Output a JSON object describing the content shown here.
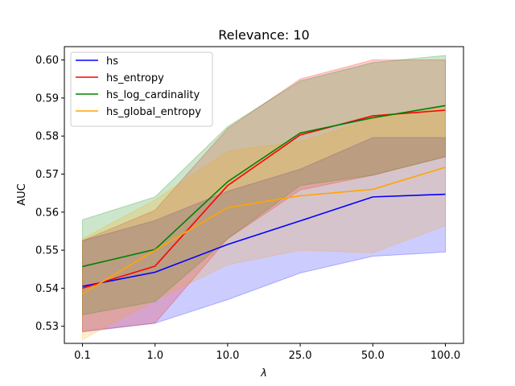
{
  "chart_data": {
    "type": "line",
    "title": "Relevance: 10",
    "xlabel": "λ",
    "ylabel": "AUC",
    "categories": [
      "0.1",
      "1.0",
      "10.0",
      "25.0",
      "50.0",
      "100.0"
    ],
    "ylim": [
      0.5255,
      0.6035
    ],
    "yticks": [
      "0.53",
      "0.54",
      "0.55",
      "0.56",
      "0.57",
      "0.58",
      "0.59",
      "0.60"
    ],
    "ytick_values": [
      0.53,
      0.54,
      0.55,
      0.56,
      0.57,
      0.58,
      0.59,
      0.6
    ],
    "grid": false,
    "legend_position": "upper-left",
    "series": [
      {
        "name": "hs",
        "color": "#0000ff",
        "values": [
          0.5405,
          0.5442,
          0.5515,
          0.5577,
          0.564,
          0.5647
        ],
        "upper": [
          0.5525,
          0.5578,
          0.5655,
          0.5713,
          0.5796,
          0.5796
        ],
        "lower": [
          0.5285,
          0.5308,
          0.537,
          0.544,
          0.5484,
          0.5495
        ]
      },
      {
        "name": "hs_entropy",
        "color": "#ff0000",
        "values": [
          0.54,
          0.5458,
          0.567,
          0.5803,
          0.5853,
          0.5868
        ],
        "upper": [
          0.5525,
          0.5605,
          0.582,
          0.595,
          0.6,
          0.6
        ],
        "lower": [
          0.5287,
          0.5308,
          0.553,
          0.5658,
          0.5697,
          0.5746
        ]
      },
      {
        "name": "hs_log_cardinality",
        "color": "#008000",
        "values": [
          0.5457,
          0.5502,
          0.568,
          0.5808,
          0.5848,
          0.588
        ],
        "upper": [
          0.558,
          0.564,
          0.5825,
          0.5945,
          0.5993,
          0.6012
        ],
        "lower": [
          0.533,
          0.5365,
          0.553,
          0.567,
          0.5697,
          0.5745
        ]
      },
      {
        "name": "hs_global_entropy",
        "color": "#ffa500",
        "values": [
          0.5385,
          0.55,
          0.5612,
          0.5643,
          0.566,
          0.5718
        ],
        "upper": [
          0.553,
          0.5632,
          0.576,
          0.5785,
          0.5845,
          0.588
        ],
        "lower": [
          0.5265,
          0.5368,
          0.5462,
          0.55,
          0.5493,
          0.5565
        ]
      }
    ]
  }
}
